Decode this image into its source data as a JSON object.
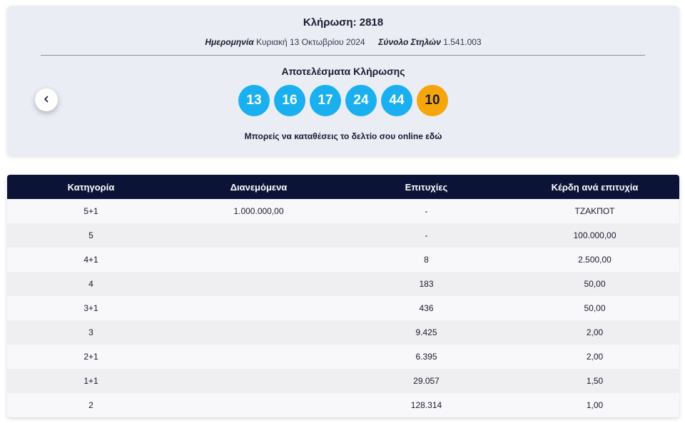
{
  "draw": {
    "title": "Κλήρωση: 2818",
    "date_label": "Ημερομηνία",
    "date_value": "Κυριακή 13 Οκτωβρίου 2024",
    "columns_label": "Σύνολο Στηλών",
    "columns_value": "1.541.003"
  },
  "results": {
    "title": "Αποτελέσματα Κλήρωσης",
    "numbers": [
      "13",
      "16",
      "17",
      "24",
      "44"
    ],
    "joker": "10",
    "main_ball_color": "#1ab0ef",
    "joker_ball_color": "#f5a60c"
  },
  "online": {
    "text": "Μπορείς να καταθέσεις το δελτίο σου online",
    "link_label": "εδώ"
  },
  "nav": {
    "prev_icon": "chevron-left-icon"
  },
  "table": {
    "header_color": "#0b1437",
    "headers": [
      "Κατηγορία",
      "Διανεμόμενα",
      "Επιτυχίες",
      "Κέρδη ανά επιτυχία"
    ],
    "rows": [
      [
        "5+1",
        "1.000.000,00",
        "-",
        "ΤΖΑΚΠΟΤ"
      ],
      [
        "5",
        "",
        "-",
        "100.000,00"
      ],
      [
        "4+1",
        "",
        "8",
        "2.500,00"
      ],
      [
        "4",
        "",
        "183",
        "50,00"
      ],
      [
        "3+1",
        "",
        "436",
        "50,00"
      ],
      [
        "3",
        "",
        "9.425",
        "2,00"
      ],
      [
        "2+1",
        "",
        "6.395",
        "2,00"
      ],
      [
        "1+1",
        "",
        "29.057",
        "1,50"
      ],
      [
        "2",
        "",
        "128.314",
        "1,00"
      ]
    ]
  }
}
